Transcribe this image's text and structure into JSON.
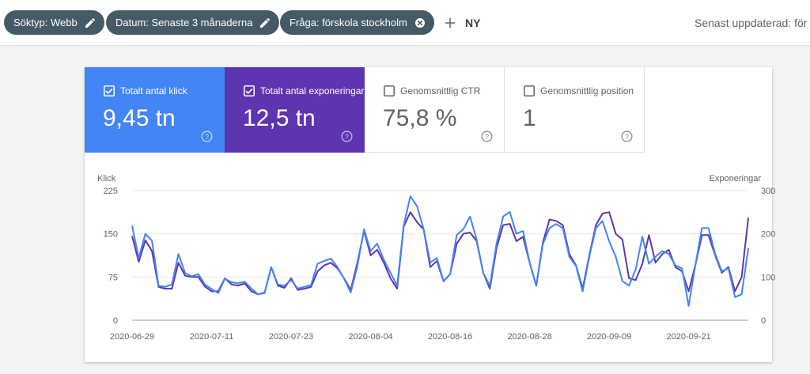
{
  "filters": [
    {
      "label": "Söktyp: Webb",
      "icon": "pencil-icon"
    },
    {
      "label": "Datum: Senaste 3 månaderna",
      "icon": "pencil-icon"
    },
    {
      "label": "Fråga: förskola stockholm",
      "icon": "close-circle-icon"
    }
  ],
  "new_label": "NY",
  "updated_label": "Senast uppdaterad: för",
  "metrics": [
    {
      "label": "Totalt antal klick",
      "value": "9,45 tn",
      "checked": true,
      "color": "#4285f4"
    },
    {
      "label": "Totalt antal exponeringar",
      "value": "12,5 tn",
      "checked": true,
      "color": "#5e35b1"
    },
    {
      "label": "Genomsnittlig CTR",
      "value": "75,8 %",
      "checked": false
    },
    {
      "label": "Genomsnittlig position",
      "value": "1",
      "checked": false
    }
  ],
  "chart_data": {
    "type": "line",
    "left_axis_label": "Klick",
    "right_axis_label": "Exponeringar",
    "left_ticks": [
      "225",
      "150",
      "75",
      "0"
    ],
    "right_ticks": [
      "300",
      "200",
      "100",
      "0"
    ],
    "ylim_left": [
      0,
      225
    ],
    "ylim_right": [
      0,
      300
    ],
    "x_ticks": [
      "2020-06-29",
      "2020-07-11",
      "2020-07-23",
      "2020-08-04",
      "2020-08-16",
      "2020-08-28",
      "2020-09-09",
      "2020-09-21"
    ],
    "start_date": "2020-06-29",
    "series": [
      {
        "name": "Klick",
        "color": "#4285f4",
        "axis": "left",
        "values": [
          164,
          108,
          150,
          138,
          60,
          58,
          62,
          115,
          82,
          76,
          80,
          62,
          54,
          47,
          72,
          66,
          64,
          67,
          55,
          45,
          48,
          92,
          62,
          60,
          70,
          55,
          58,
          61,
          98,
          103,
          107,
          92,
          72,
          48,
          94,
          158,
          120,
          133,
          105,
          82,
          60,
          165,
          215,
          198,
          158,
          100,
          108,
          68,
          80,
          148,
          158,
          180,
          140,
          82,
          60,
          133,
          180,
          188,
          150,
          155,
          100,
          60,
          132,
          160,
          167,
          160,
          110,
          94,
          50,
          110,
          160,
          172,
          137,
          110,
          68,
          60,
          88,
          145,
          98,
          110,
          120,
          115,
          95,
          90,
          25,
          95,
          160,
          160,
          115,
          85,
          90,
          40,
          45,
          125
        ]
      },
      {
        "name": "Exponeringar",
        "color": "#5e35b1",
        "axis": "right",
        "values": [
          195,
          135,
          185,
          160,
          77,
          73,
          73,
          133,
          103,
          100,
          100,
          78,
          67,
          67,
          97,
          83,
          80,
          85,
          67,
          60,
          63,
          123,
          80,
          75,
          97,
          70,
          73,
          77,
          113,
          127,
          133,
          120,
          97,
          70,
          133,
          207,
          150,
          163,
          133,
          97,
          73,
          217,
          250,
          227,
          210,
          123,
          137,
          90,
          107,
          177,
          200,
          203,
          183,
          110,
          73,
          167,
          220,
          223,
          183,
          193,
          133,
          80,
          180,
          233,
          230,
          220,
          153,
          127,
          73,
          150,
          220,
          247,
          250,
          200,
          187,
          97,
          93,
          130,
          197,
          133,
          153,
          163,
          123,
          113,
          67,
          127,
          197,
          197,
          150,
          110,
          123,
          67,
          100,
          237
        ]
      }
    ]
  }
}
